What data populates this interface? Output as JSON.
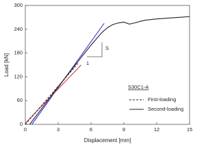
{
  "chart_data": {
    "type": "line",
    "x_label": "Displacement [mm]",
    "y_label": "Load [kN]",
    "xlim": [
      0,
      15
    ],
    "ylim": [
      0,
      300
    ],
    "xticks": [
      0,
      3,
      6,
      9,
      12,
      15
    ],
    "yticks": [
      0,
      60,
      120,
      180,
      240,
      300
    ],
    "grid": false,
    "specimen_label": "S30C1-A",
    "slope_labels": [
      "S",
      "1"
    ],
    "series": [
      {
        "name": "First-loading",
        "color": "#222222",
        "dash": true,
        "x": [
          0,
          1,
          2,
          3,
          4,
          4.8
        ],
        "values": [
          0,
          32,
          64,
          96,
          128,
          154
        ]
      },
      {
        "name": "Second-loading",
        "color": "#222222",
        "dash": false,
        "x": [
          0.4,
          1.5,
          3,
          4.5,
          6,
          7,
          7.5,
          8,
          8.5,
          9,
          9.5,
          10,
          10.5,
          11,
          12,
          13,
          14,
          15
        ],
        "values": [
          0,
          40,
          95,
          148,
          200,
          232,
          244,
          252,
          256,
          258,
          253,
          256,
          260,
          263,
          266,
          268,
          270,
          272
        ]
      }
    ],
    "reference_lines": [
      {
        "color": "#3a3ad8",
        "x": [
          0.6,
          7.2
        ],
        "values": [
          0,
          255
        ]
      },
      {
        "color": "#d83a3a",
        "x": [
          0,
          5.1
        ],
        "values": [
          3,
          150
        ]
      }
    ]
  }
}
